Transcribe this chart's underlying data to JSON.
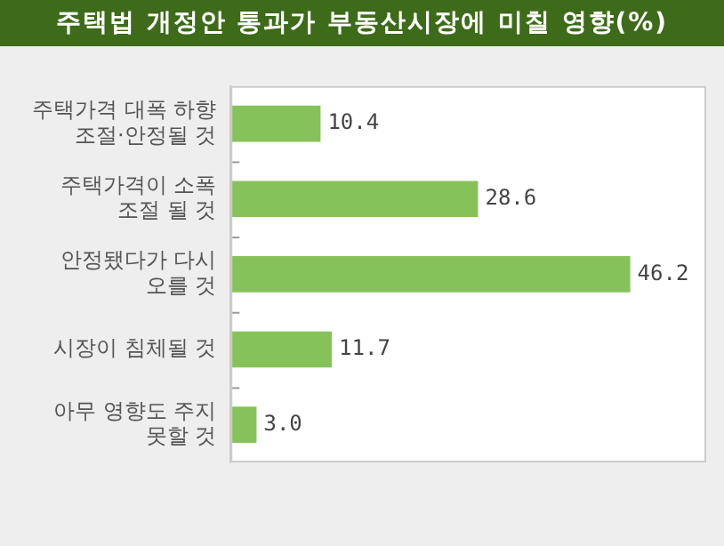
{
  "chart_data": {
    "type": "bar",
    "orientation": "horizontal",
    "title": "주택법 개정안 통과가 부동산시장에 미칠 영향(%)",
    "categories": [
      "주택가격 대폭 하향\n조절·안정될 것",
      "주택가격이 소폭\n조절 될 것",
      "안정됐다가 다시\n오를 것",
      "시장이 침체될 것",
      "아무 영향도 주지\n못할 것"
    ],
    "values": [
      10.4,
      28.6,
      46.2,
      11.7,
      3.0
    ],
    "color": "#86c25a",
    "value_labels": [
      "10.4",
      "28.6",
      "46.2",
      "11.7",
      "3.0"
    ],
    "grid": false,
    "legend": false
  }
}
